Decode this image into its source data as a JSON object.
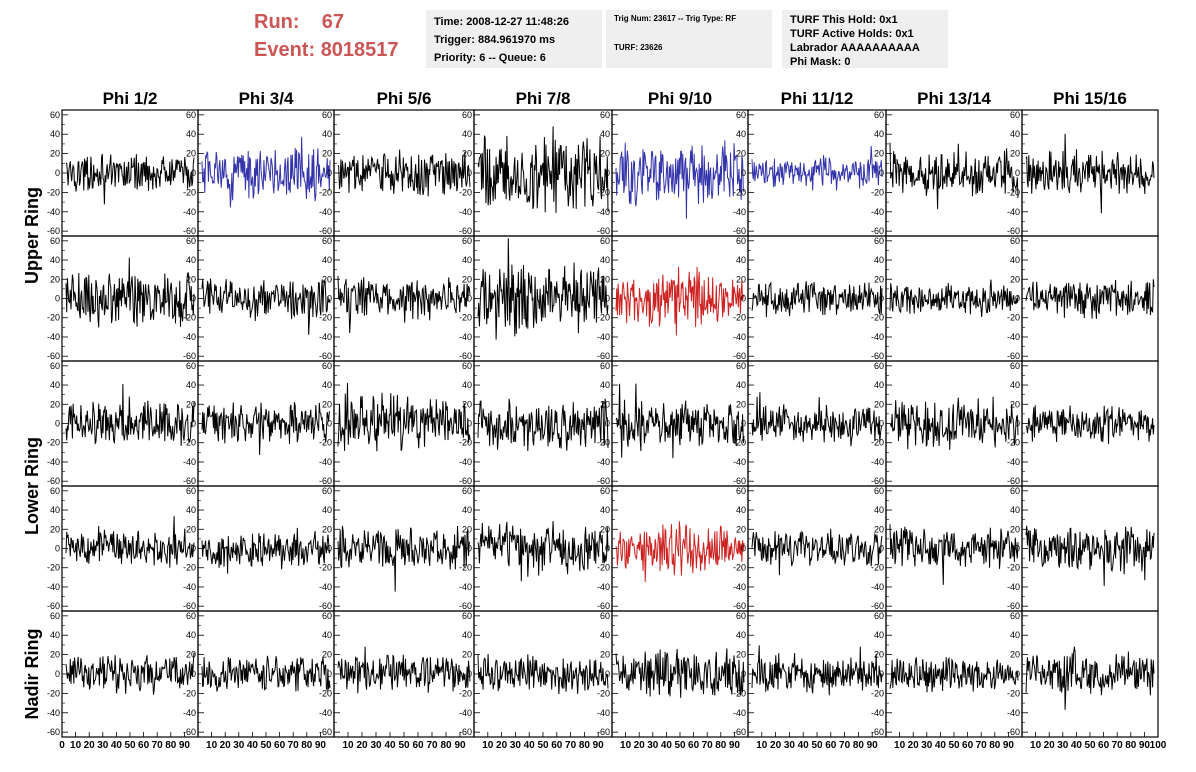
{
  "header": {
    "run_label": "Run:",
    "run_value": "67",
    "event_label": "Event:",
    "event_value": "8018517",
    "accent_color": "#cc5555"
  },
  "info_time": {
    "time": "Time: 2008-12-27 11:48:26",
    "trigger": "Trigger: 884.961970 ms",
    "priority": "Priority: 6 -- Queue: 6"
  },
  "info_trig": {
    "trig": "Trig Num: 23617 -- Trig Type: RF",
    "turf": "TURF: 23626"
  },
  "info_turf": {
    "this_hold": "TURF This Hold: 0x1",
    "active_holds": "TURF Active Holds: 0x1",
    "labrador": "Labrador AAAAAAAAAA",
    "phi_mask": "Phi Mask: 0"
  },
  "columns": [
    "Phi 1/2",
    "Phi 3/4",
    "Phi 5/6",
    "Phi 7/8",
    "Phi 9/10",
    "Phi 11/12",
    "Phi 13/14",
    "Phi 15/16"
  ],
  "rings": [
    "Upper Ring",
    "Lower Ring",
    "Nadir Ring"
  ],
  "y_ticks": [
    "60",
    "40",
    "20",
    "0",
    "-20",
    "-40",
    "-60"
  ],
  "x_ticks": [
    "0",
    "10",
    "20",
    "30",
    "40",
    "50",
    "60",
    "70",
    "80",
    "90",
    "100"
  ],
  "x_ticks_first": [
    "0",
    "10",
    "20",
    "30",
    "40",
    "50",
    "60",
    "70",
    "80",
    "90"
  ],
  "x_ticks_middle": [
    "10",
    "20",
    "30",
    "40",
    "50",
    "60",
    "70",
    "80",
    "90"
  ],
  "x_ticks_last": [
    "10",
    "20",
    "30",
    "40",
    "50",
    "60",
    "70",
    "80",
    "90",
    "100"
  ],
  "colors": {
    "normal": "#000000",
    "highlight_blue": "#3333aa",
    "highlight_red": "#cc2222"
  },
  "panels": [
    {
      "row": 0,
      "col": 0,
      "color": "normal",
      "amp": 14
    },
    {
      "row": 0,
      "col": 1,
      "color": "highlight_blue",
      "amp": 20
    },
    {
      "row": 0,
      "col": 2,
      "color": "normal",
      "amp": 17
    },
    {
      "row": 0,
      "col": 3,
      "color": "normal",
      "amp": 30
    },
    {
      "row": 0,
      "col": 4,
      "color": "highlight_blue",
      "amp": 24
    },
    {
      "row": 0,
      "col": 5,
      "color": "highlight_blue",
      "amp": 13
    },
    {
      "row": 0,
      "col": 6,
      "color": "normal",
      "amp": 18
    },
    {
      "row": 0,
      "col": 7,
      "color": "normal",
      "amp": 18
    },
    {
      "row": 1,
      "col": 0,
      "color": "normal",
      "amp": 22
    },
    {
      "row": 1,
      "col": 1,
      "color": "normal",
      "amp": 17
    },
    {
      "row": 1,
      "col": 2,
      "color": "normal",
      "amp": 16
    },
    {
      "row": 1,
      "col": 3,
      "color": "normal",
      "amp": 28
    },
    {
      "row": 1,
      "col": 4,
      "color": "highlight_red",
      "amp": 28
    },
    {
      "row": 1,
      "col": 5,
      "color": "normal",
      "amp": 14
    },
    {
      "row": 1,
      "col": 6,
      "color": "normal",
      "amp": 12
    },
    {
      "row": 1,
      "col": 7,
      "color": "normal",
      "amp": 15
    },
    {
      "row": 2,
      "col": 0,
      "color": "normal",
      "amp": 17
    },
    {
      "row": 2,
      "col": 1,
      "color": "normal",
      "amp": 15
    },
    {
      "row": 2,
      "col": 2,
      "color": "normal",
      "amp": 24
    },
    {
      "row": 2,
      "col": 3,
      "color": "normal",
      "amp": 22
    },
    {
      "row": 2,
      "col": 4,
      "color": "normal",
      "amp": 20
    },
    {
      "row": 2,
      "col": 5,
      "color": "normal",
      "amp": 14
    },
    {
      "row": 2,
      "col": 6,
      "color": "normal",
      "amp": 19
    },
    {
      "row": 2,
      "col": 7,
      "color": "normal",
      "amp": 14
    },
    {
      "row": 3,
      "col": 0,
      "color": "normal",
      "amp": 16
    },
    {
      "row": 3,
      "col": 1,
      "color": "normal",
      "amp": 15
    },
    {
      "row": 3,
      "col": 2,
      "color": "normal",
      "amp": 17
    },
    {
      "row": 3,
      "col": 3,
      "color": "normal",
      "amp": 20
    },
    {
      "row": 3,
      "col": 4,
      "color": "highlight_red",
      "amp": 24
    },
    {
      "row": 3,
      "col": 5,
      "color": "normal",
      "amp": 14
    },
    {
      "row": 3,
      "col": 6,
      "color": "normal",
      "amp": 15
    },
    {
      "row": 3,
      "col": 7,
      "color": "normal",
      "amp": 17
    },
    {
      "row": 4,
      "col": 0,
      "color": "normal",
      "amp": 15
    },
    {
      "row": 4,
      "col": 1,
      "color": "normal",
      "amp": 14
    },
    {
      "row": 4,
      "col": 2,
      "color": "normal",
      "amp": 15
    },
    {
      "row": 4,
      "col": 3,
      "color": "normal",
      "amp": 15
    },
    {
      "row": 4,
      "col": 4,
      "color": "normal",
      "amp": 18
    },
    {
      "row": 4,
      "col": 5,
      "color": "normal",
      "amp": 15
    },
    {
      "row": 4,
      "col": 6,
      "color": "normal",
      "amp": 14
    },
    {
      "row": 4,
      "col": 7,
      "color": "normal",
      "amp": 16
    }
  ]
}
